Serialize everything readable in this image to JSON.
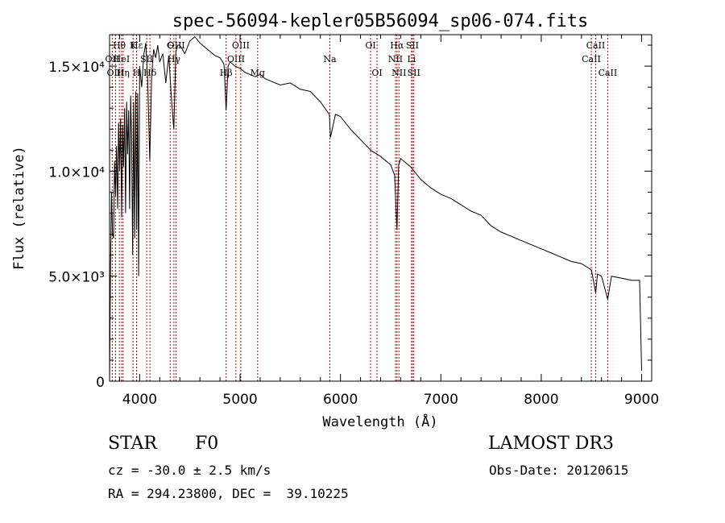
{
  "chart_data": {
    "type": "line",
    "title": "spec-56094-kepler05B56094_sp06-074.fits",
    "xlabel": "Wavelength (Å)",
    "ylabel": "Flux (relative)",
    "xlim": [
      3700,
      9100
    ],
    "ylim": [
      0,
      16500
    ],
    "x_ticks": [
      4000,
      5000,
      6000,
      7000,
      8000,
      9000
    ],
    "x_tick_labels": [
      "4000",
      "5000",
      "6000",
      "7000",
      "8000",
      "9000"
    ],
    "y_ticks": [
      0,
      5000,
      10000,
      15000
    ],
    "y_tick_labels": [
      "0",
      "5.0×10³",
      "1.0×10⁴",
      "1.5×10⁴"
    ],
    "spectrum": {
      "name": "flux",
      "x": [
        3700,
        3710,
        3720,
        3730,
        3740,
        3750,
        3760,
        3770,
        3780,
        3790,
        3800,
        3810,
        3820,
        3830,
        3840,
        3850,
        3860,
        3870,
        3880,
        3890,
        3900,
        3910,
        3920,
        3930,
        3940,
        3950,
        3960,
        3970,
        3980,
        3990,
        4000,
        4020,
        4040,
        4060,
        4080,
        4100,
        4120,
        4140,
        4160,
        4180,
        4200,
        4230,
        4260,
        4290,
        4320,
        4340,
        4360,
        4380,
        4400,
        4450,
        4500,
        4550,
        4600,
        4650,
        4700,
        4750,
        4800,
        4840,
        4861,
        4880,
        4900,
        4950,
        5000,
        5050,
        5100,
        5150,
        5200,
        5250,
        5300,
        5400,
        5500,
        5600,
        5700,
        5800,
        5890,
        5900,
        5950,
        6000,
        6100,
        6200,
        6300,
        6400,
        6500,
        6540,
        6563,
        6580,
        6600,
        6700,
        6800,
        6900,
        7000,
        7100,
        7200,
        7300,
        7400,
        7500,
        7600,
        7700,
        7800,
        7900,
        8000,
        8100,
        8200,
        8300,
        8400,
        8500,
        8542,
        8560,
        8600,
        8662,
        8700,
        8800,
        8900,
        8980,
        9000
      ],
      "y": [
        0,
        5500,
        9000,
        7000,
        6800,
        10500,
        8800,
        11200,
        8200,
        12300,
        10000,
        12500,
        7800,
        12200,
        10200,
        13000,
        8000,
        13300,
        10800,
        12900,
        8200,
        13600,
        11400,
        6000,
        13300,
        6800,
        13800,
        7200,
        13700,
        5000,
        15000,
        14000,
        15500,
        16100,
        14300,
        10500,
        14600,
        15800,
        15400,
        16000,
        15200,
        15600,
        14200,
        15500,
        13200,
        12000,
        15700,
        16000,
        16000,
        15600,
        16200,
        16400,
        16100,
        15900,
        15700,
        15500,
        15400,
        15100,
        12900,
        15000,
        15200,
        15000,
        14900,
        14700,
        14600,
        14500,
        14600,
        14400,
        14300,
        14100,
        14200,
        13900,
        13800,
        13300,
        12700,
        11600,
        12700,
        12600,
        12000,
        11500,
        11000,
        10700,
        10300,
        9800,
        7200,
        10300,
        10600,
        10200,
        9600,
        9200,
        8900,
        8700,
        8400,
        8100,
        7900,
        7400,
        7100,
        6900,
        6700,
        6500,
        6300,
        6100,
        5900,
        5700,
        5600,
        5300,
        4200,
        5100,
        5000,
        3900,
        5000,
        4900,
        4800,
        4800,
        500
      ]
    },
    "lines": [
      {
        "name": "Hθ",
        "x": 3797,
        "row": 0
      },
      {
        "name": "OII",
        "x": 3727,
        "row": 1
      },
      {
        "name": "HeI",
        "x": 3820,
        "row": 1
      },
      {
        "name": "OIII",
        "x": 3760,
        "row": 2
      },
      {
        "name": "Hη",
        "x": 3835,
        "row": 2
      },
      {
        "name": "K",
        "x": 3934,
        "row": 0
      },
      {
        "name": "H",
        "x": 3969,
        "row": 2
      },
      {
        "name": "Hε",
        "x": 3970,
        "row": 0
      },
      {
        "name": "SII",
        "x": 4070,
        "row": 1
      },
      {
        "name": "Hδ",
        "x": 4102,
        "row": 2
      },
      {
        "name": "G",
        "x": 4304,
        "row": 0
      },
      {
        "name": "Hγ",
        "x": 4341,
        "row": 1
      },
      {
        "name": "OIII",
        "x": 4363,
        "row": 0
      },
      {
        "name": "Hβ",
        "x": 4861,
        "row": 2
      },
      {
        "name": "OIII",
        "x": 4959,
        "row": 1
      },
      {
        "name": "OIII",
        "x": 5007,
        "row": 0
      },
      {
        "name": "Mg",
        "x": 5175,
        "row": 2
      },
      {
        "name": "Na",
        "x": 5894,
        "row": 1
      },
      {
        "name": "OI",
        "x": 6300,
        "row": 0
      },
      {
        "name": "OI",
        "x": 6364,
        "row": 2
      },
      {
        "name": "NII",
        "x": 6548,
        "row": 1
      },
      {
        "name": "Hα",
        "x": 6563,
        "row": 0
      },
      {
        "name": "NII",
        "x": 6583,
        "row": 2
      },
      {
        "name": "Li",
        "x": 6708,
        "row": 1
      },
      {
        "name": "SII",
        "x": 6716,
        "row": 0
      },
      {
        "name": "SII",
        "x": 6731,
        "row": 2
      },
      {
        "name": "CaII",
        "x": 8498,
        "row": 1
      },
      {
        "name": "CaII",
        "x": 8542,
        "row": 0
      },
      {
        "name": "CaII",
        "x": 8662,
        "row": 2
      }
    ]
  },
  "info": {
    "object_class": "STAR",
    "subclass": "F0",
    "survey": "LAMOST DR3",
    "redshift": "cz = -30.0 ± 2.5 km/s",
    "obs_date": "Obs-Date: 20120615",
    "coords": "RA = 294.23800, DEC =  39.10225"
  }
}
